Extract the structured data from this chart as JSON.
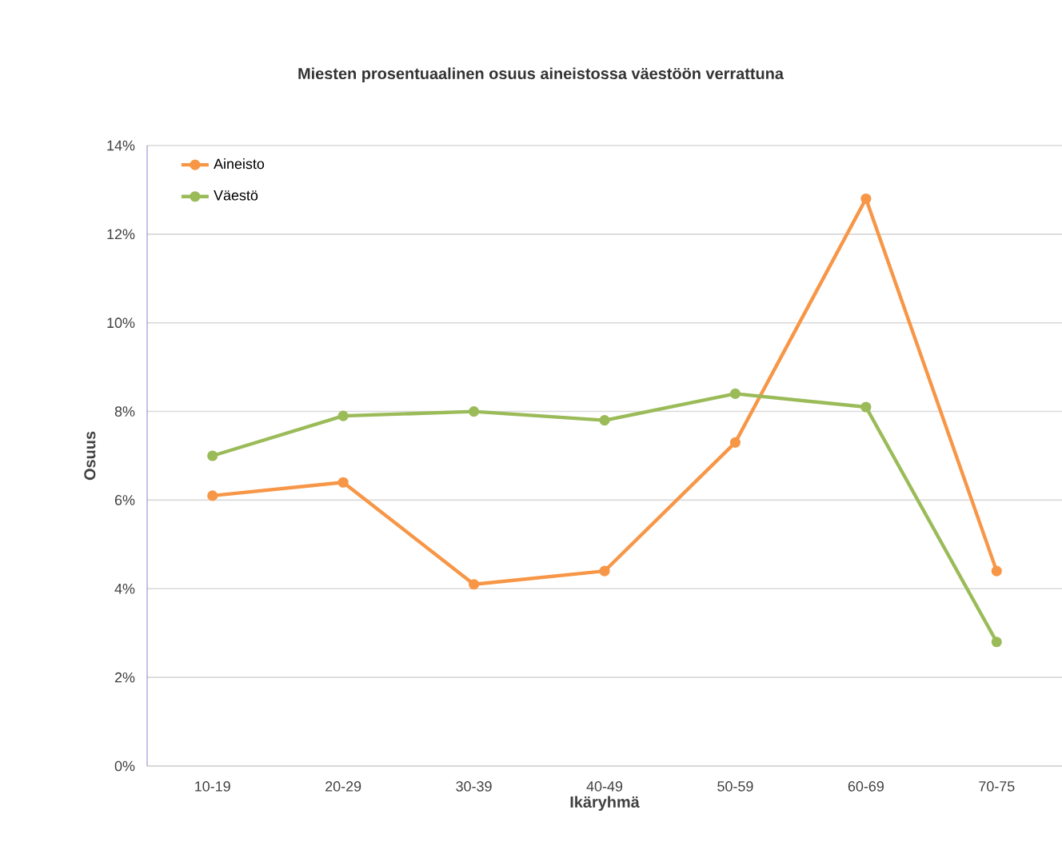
{
  "chart_data": {
    "type": "line",
    "title": "Miesten prosentuaalinen osuus aineistossa väestöön verrattuna",
    "xlabel": "Ikäryhmä",
    "ylabel": "Osuus",
    "categories": [
      "10-19",
      "20-29",
      "30-39",
      "40-49",
      "50-59",
      "60-69",
      "70-75"
    ],
    "series": [
      {
        "name": "Aineisto",
        "color": "#f79646",
        "values": [
          6.1,
          6.4,
          4.1,
          4.4,
          7.3,
          12.8,
          4.4
        ]
      },
      {
        "name": "Väestö",
        "color": "#9bbb59",
        "values": [
          7.0,
          7.9,
          8.0,
          7.8,
          8.4,
          8.1,
          2.8
        ]
      }
    ],
    "ylim": [
      0,
      14
    ],
    "yticks": [
      {
        "value": 0,
        "label": "0%"
      },
      {
        "value": 2,
        "label": "2%"
      },
      {
        "value": 4,
        "label": "4%"
      },
      {
        "value": 6,
        "label": "6%"
      },
      {
        "value": 8,
        "label": "8%"
      },
      {
        "value": 10,
        "label": "10%"
      },
      {
        "value": 12,
        "label": "12%"
      },
      {
        "value": 14,
        "label": "14%"
      }
    ],
    "grid": "y",
    "legend": "top left",
    "marker": "circle",
    "line_style": "solid"
  }
}
